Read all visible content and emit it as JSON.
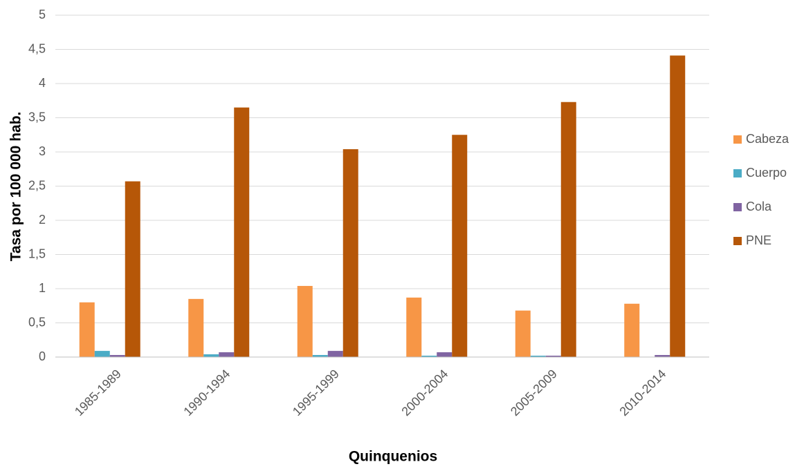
{
  "chart_data": {
    "type": "bar",
    "x_label": "Quinquenios",
    "y_label": "Tasa por 100 000 hab.",
    "categories": [
      "1985-1989",
      "1990-1994",
      "1995-1999",
      "2000-2004",
      "2005-2009",
      "2010-2014"
    ],
    "series": [
      {
        "name": "Cabeza",
        "color": "#f79646",
        "values": [
          0.8,
          0.85,
          1.04,
          0.87,
          0.68,
          0.78
        ]
      },
      {
        "name": "Cuerpo",
        "color": "#4bacc6",
        "values": [
          0.09,
          0.04,
          0.03,
          0.02,
          0.02,
          0
        ]
      },
      {
        "name": "Cola",
        "color": "#8064a2",
        "values": [
          0.03,
          0.07,
          0.09,
          0.07,
          0.02,
          0.03
        ]
      },
      {
        "name": "PNE",
        "color": "#b65708",
        "values": [
          2.57,
          3.65,
          3.04,
          3.25,
          3.73,
          4.41
        ]
      }
    ],
    "ylim": [
      0,
      5
    ],
    "yticks": [
      0,
      {
        "value": 0.5,
        "label": "0,5"
      },
      1,
      {
        "value": 1.5,
        "label": "1,5"
      },
      2,
      {
        "value": 2.5,
        "label": "2,5"
      },
      3,
      {
        "value": 3.5,
        "label": "3,5"
      },
      4,
      {
        "value": 4.5,
        "label": "4,5"
      },
      5
    ],
    "grid": true,
    "legend": "right"
  }
}
